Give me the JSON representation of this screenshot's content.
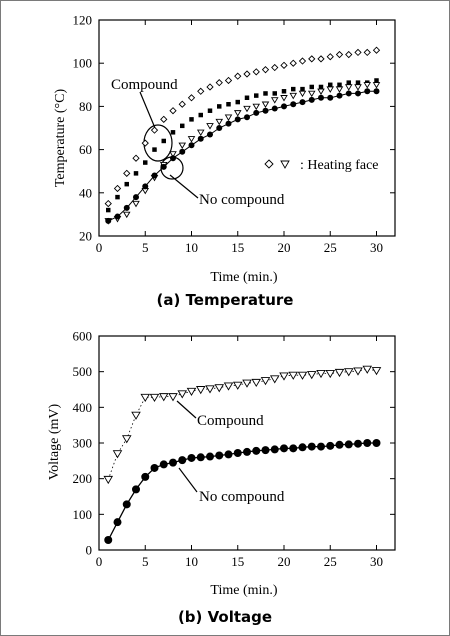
{
  "chart_data": [
    {
      "type": "scatter",
      "caption": "(a)  Temperature",
      "xlabel": "Time (min.)",
      "ylabel": "Temperature (°C)",
      "xlim": [
        0,
        32
      ],
      "ylim": [
        20,
        120
      ],
      "xticks": [
        0,
        5,
        10,
        15,
        20,
        25,
        30
      ],
      "yticks": [
        20,
        40,
        60,
        80,
        100,
        120
      ],
      "grid": false,
      "annotations": [
        {
          "text": "Compound"
        },
        {
          "text": "No compound"
        },
        {
          "text": ": Heating face"
        }
      ],
      "series": [
        {
          "marker": "open-diamond",
          "x": [
            1,
            2,
            3,
            4,
            5,
            6,
            7,
            8,
            9,
            10,
            11,
            12,
            13,
            14,
            15,
            16,
            17,
            18,
            19,
            20,
            21,
            22,
            23,
            24,
            25,
            26,
            27,
            28,
            29,
            30
          ],
          "values": [
            35,
            42,
            49,
            56,
            63,
            69,
            74,
            78,
            81,
            84,
            87,
            89,
            91,
            92,
            94,
            95,
            96,
            97,
            98,
            99,
            100,
            101,
            102,
            102,
            103,
            104,
            104,
            105,
            105,
            106
          ]
        },
        {
          "marker": "filled-square",
          "x": [
            1,
            2,
            3,
            4,
            5,
            6,
            7,
            8,
            9,
            10,
            11,
            12,
            13,
            14,
            15,
            16,
            17,
            18,
            19,
            20,
            21,
            22,
            23,
            24,
            25,
            26,
            27,
            28,
            29,
            30
          ],
          "values": [
            32,
            38,
            44,
            49,
            54,
            60,
            64,
            68,
            71,
            74,
            76,
            78,
            80,
            81,
            82,
            84,
            85,
            86,
            86,
            87,
            88,
            88,
            89,
            89,
            90,
            90,
            91,
            91,
            91,
            92
          ]
        },
        {
          "marker": "open-triangle-down",
          "x": [
            1,
            2,
            3,
            4,
            5,
            6,
            7,
            8,
            9,
            10,
            11,
            12,
            13,
            14,
            15,
            16,
            17,
            18,
            19,
            20,
            21,
            22,
            23,
            24,
            25,
            26,
            27,
            28,
            29,
            30
          ],
          "values": [
            27,
            28,
            30,
            35,
            41,
            47,
            53,
            58,
            62,
            65,
            68,
            71,
            73,
            75,
            77,
            79,
            80,
            81,
            83,
            84,
            85,
            86,
            86,
            87,
            88,
            88,
            89,
            89,
            90,
            90
          ]
        },
        {
          "marker": "filled-circle",
          "x": [
            1,
            2,
            3,
            4,
            5,
            6,
            7,
            8,
            9,
            10,
            11,
            12,
            13,
            14,
            15,
            16,
            17,
            18,
            19,
            20,
            21,
            22,
            23,
            24,
            25,
            26,
            27,
            28,
            29,
            30
          ],
          "values": [
            27,
            29,
            33,
            38,
            43,
            48,
            52,
            56,
            59,
            62,
            65,
            67,
            70,
            72,
            74,
            75,
            77,
            78,
            79,
            80,
            81,
            82,
            83,
            84,
            84,
            85,
            86,
            86,
            87,
            87
          ]
        }
      ]
    },
    {
      "type": "scatter",
      "caption": "(b)  Voltage",
      "xlabel": "Time (min.)",
      "ylabel": "Voltage (mV)",
      "xlim": [
        0,
        32
      ],
      "ylim": [
        0,
        600
      ],
      "xticks": [
        0,
        5,
        10,
        15,
        20,
        25,
        30
      ],
      "yticks": [
        0,
        100,
        200,
        300,
        400,
        500,
        600
      ],
      "grid": false,
      "annotations": [
        {
          "text": "Compound"
        },
        {
          "text": "No compound"
        }
      ],
      "series": [
        {
          "marker": "open-triangle-down",
          "x": [
            1,
            2,
            3,
            4,
            5,
            6,
            7,
            8,
            9,
            10,
            11,
            12,
            13,
            14,
            15,
            16,
            17,
            18,
            19,
            20,
            21,
            22,
            23,
            24,
            25,
            26,
            27,
            28,
            29,
            30
          ],
          "values": [
            198,
            270,
            312,
            378,
            428,
            428,
            430,
            430,
            438,
            445,
            450,
            452,
            455,
            460,
            462,
            468,
            470,
            475,
            480,
            488,
            490,
            490,
            492,
            495,
            495,
            498,
            500,
            502,
            507,
            503
          ]
        },
        {
          "marker": "filled-circle",
          "x": [
            1,
            2,
            3,
            4,
            5,
            6,
            7,
            8,
            9,
            10,
            11,
            12,
            13,
            14,
            15,
            16,
            17,
            18,
            19,
            20,
            21,
            22,
            23,
            24,
            25,
            26,
            27,
            28,
            29,
            30
          ],
          "values": [
            28,
            78,
            128,
            170,
            205,
            230,
            240,
            245,
            252,
            258,
            260,
            262,
            265,
            268,
            272,
            275,
            278,
            280,
            282,
            285,
            285,
            288,
            290,
            290,
            292,
            295,
            296,
            298,
            300,
            300
          ]
        }
      ]
    }
  ]
}
